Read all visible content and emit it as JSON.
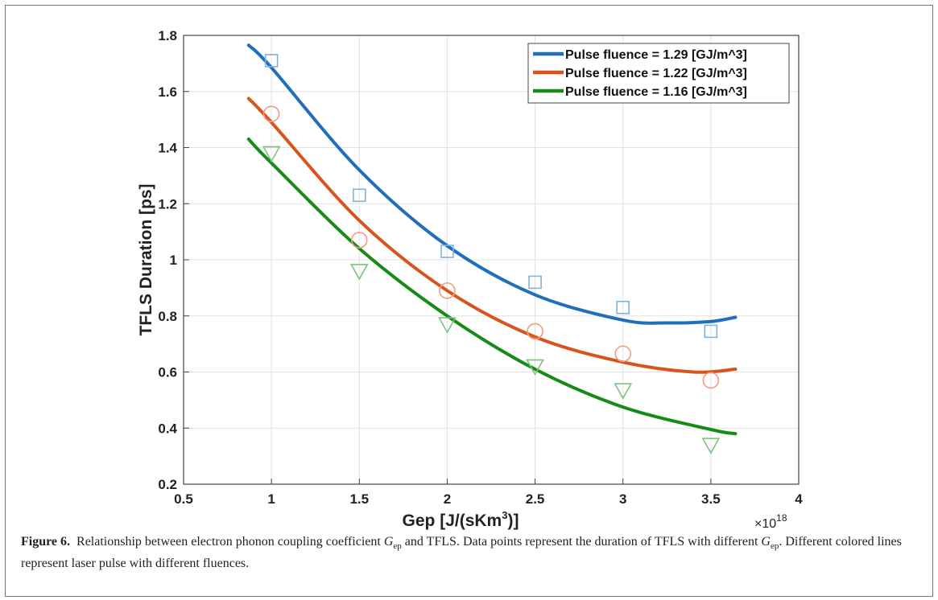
{
  "chart_data": {
    "type": "scatter",
    "title": "",
    "xlabel": "Gep [J/(sKm",
    "xlabel_sup": "3",
    "xlabel_end": ")]",
    "x_exponent_prefix": "×10",
    "x_exponent_power": "18",
    "ylabel": "TFLS Duration [ps]",
    "xlim": [
      0.5,
      4
    ],
    "ylim": [
      0.2,
      1.8
    ],
    "x_ticks": [
      0.5,
      1,
      1.5,
      2,
      2.5,
      3,
      3.5,
      4
    ],
    "x_tick_labels": [
      "0.5",
      "1",
      "1.5",
      "2",
      "2.5",
      "3",
      "3.5",
      "4"
    ],
    "y_ticks": [
      0.2,
      0.4,
      0.6,
      0.8,
      1.0,
      1.2,
      1.4,
      1.6,
      1.8
    ],
    "y_tick_labels": [
      "0.2",
      "0.4",
      "0.6",
      "0.8",
      "1",
      "1.2",
      "1.4",
      "1.6",
      "1.8"
    ],
    "grid": true,
    "legend_position": "top-right",
    "series": [
      {
        "name": "Pulse fluence = 1.29 [GJ/m^3]",
        "color": "#1f6fba",
        "marker": "square",
        "marker_color": "#7fb3de",
        "x": [
          1,
          1.5,
          2,
          2.5,
          3,
          3.5
        ],
        "y": [
          1.71,
          1.23,
          1.03,
          0.92,
          0.83,
          0.745
        ],
        "fit": [
          [
            0.87,
            1.765
          ],
          [
            1.0,
            1.685
          ],
          [
            1.5,
            1.32
          ],
          [
            2.0,
            1.05
          ],
          [
            2.5,
            0.875
          ],
          [
            3.0,
            0.785
          ],
          [
            3.25,
            0.775
          ],
          [
            3.5,
            0.78
          ],
          [
            3.64,
            0.795
          ]
        ]
      },
      {
        "name": "Pulse fluence = 1.22 [GJ/m^3]",
        "color": "#d8541e",
        "marker": "circle",
        "marker_color": "#ef9d80",
        "x": [
          1,
          1.5,
          2,
          2.5,
          3,
          3.5
        ],
        "y": [
          1.52,
          1.07,
          0.89,
          0.745,
          0.665,
          0.57
        ],
        "fit": [
          [
            0.87,
            1.575
          ],
          [
            1.0,
            1.49
          ],
          [
            1.5,
            1.14
          ],
          [
            2.0,
            0.89
          ],
          [
            2.5,
            0.725
          ],
          [
            3.0,
            0.635
          ],
          [
            3.4,
            0.6
          ],
          [
            3.64,
            0.61
          ]
        ]
      },
      {
        "name": "Pulse fluence = 1.16 [GJ/m^3]",
        "color": "#178a17",
        "marker": "triangle-down",
        "marker_color": "#7fc27f",
        "x": [
          1,
          1.5,
          2,
          2.5,
          3,
          3.5
        ],
        "y": [
          1.38,
          0.96,
          0.77,
          0.62,
          0.535,
          0.34
        ],
        "fit": [
          [
            0.87,
            1.43
          ],
          [
            1.0,
            1.345
          ],
          [
            1.5,
            1.04
          ],
          [
            2.0,
            0.8
          ],
          [
            2.5,
            0.61
          ],
          [
            3.0,
            0.475
          ],
          [
            3.5,
            0.395
          ],
          [
            3.64,
            0.38
          ]
        ]
      }
    ]
  },
  "caption": {
    "label": "Figure 6.",
    "text_part1": "Relationship between electron phonon coupling coefficient ",
    "symbol": "G",
    "symbol_sub": "ep",
    "text_part2": " and TFLS. Data points represent the duration of TFLS with different ",
    "text_part3": ". Different colored lines represent laser pulse with different fluences."
  }
}
